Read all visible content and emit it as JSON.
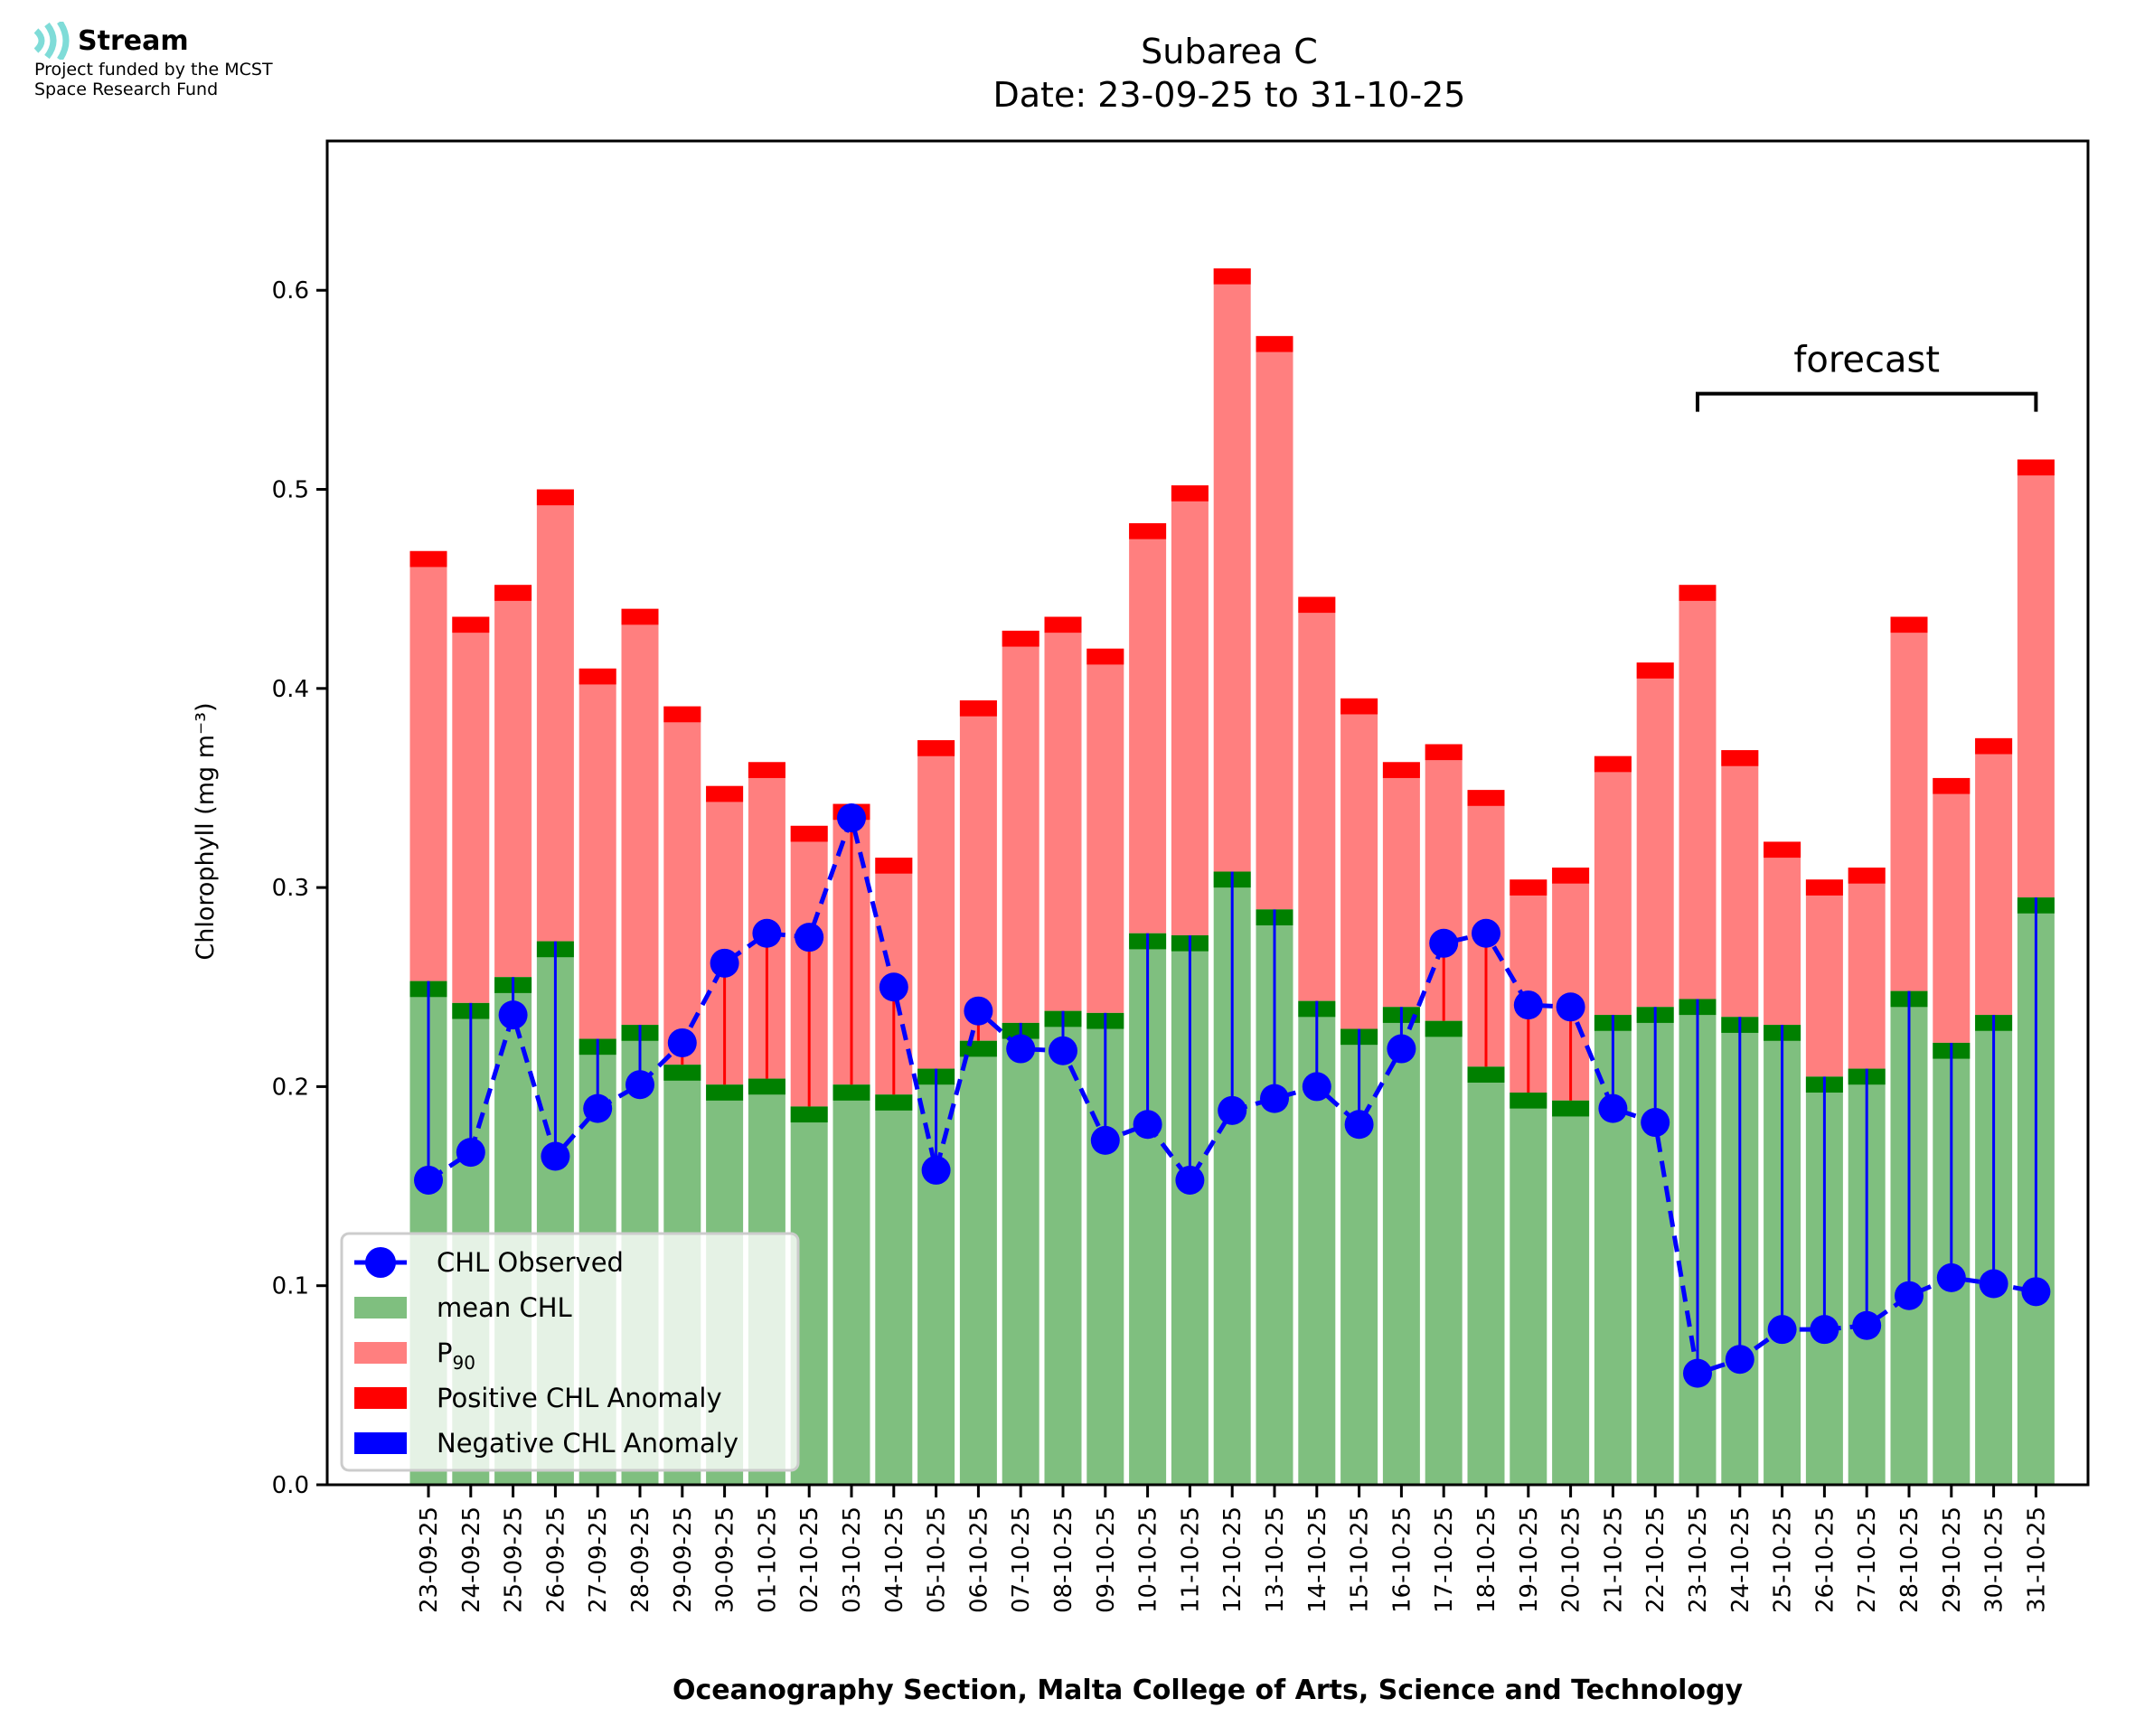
{
  "logo": {
    "name": "Stream",
    "line1": "Project funded by the MCST",
    "line2": "Space Research Fund",
    "icon": "stream-waves-icon",
    "color": "#7fdcd8"
  },
  "chart_data": {
    "type": "bar",
    "title": "Subarea C",
    "subtitle": "Date: 23-09-25 to 31-10-25",
    "xlabel": "Oceanography Section, Malta College of Arts, Science and Technology",
    "ylabel": "Chlorophyll (mg m⁻³)",
    "ylim": [
      0,
      0.675
    ],
    "yticks": [
      0.0,
      0.1,
      0.2,
      0.3,
      0.4,
      0.5,
      0.6
    ],
    "ytick_labels": [
      "0.0",
      "0.1",
      "0.2",
      "0.3",
      "0.4",
      "0.5",
      "0.6"
    ],
    "grid": false,
    "legend_position": "lower-left",
    "annotation": {
      "text": "forecast",
      "from": "23-10-25",
      "to": "31-10-25"
    },
    "categories": [
      "23-09-25",
      "24-09-25",
      "25-09-25",
      "26-09-25",
      "27-09-25",
      "28-09-25",
      "29-09-25",
      "30-09-25",
      "01-10-25",
      "02-10-25",
      "03-10-25",
      "04-10-25",
      "05-10-25",
      "06-10-25",
      "07-10-25",
      "08-10-25",
      "09-10-25",
      "10-10-25",
      "11-10-25",
      "12-10-25",
      "13-10-25",
      "14-10-25",
      "15-10-25",
      "16-10-25",
      "17-10-25",
      "18-10-25",
      "19-10-25",
      "20-10-25",
      "21-10-25",
      "22-10-25",
      "23-10-25",
      "24-10-25",
      "25-10-25",
      "26-10-25",
      "27-10-25",
      "28-10-25",
      "29-10-25",
      "30-10-25",
      "31-10-25"
    ],
    "series": [
      {
        "name": "mean CHL",
        "color": "#7fbf7f",
        "band_color": "#008000",
        "values": [
          0.253,
          0.242,
          0.255,
          0.273,
          0.224,
          0.231,
          0.211,
          0.201,
          0.204,
          0.19,
          0.201,
          0.196,
          0.209,
          0.223,
          0.232,
          0.238,
          0.237,
          0.277,
          0.276,
          0.308,
          0.289,
          0.243,
          0.229,
          0.24,
          0.233,
          0.21,
          0.197,
          0.193,
          0.236,
          0.24,
          0.244,
          0.235,
          0.231,
          0.205,
          0.209,
          0.248,
          0.222,
          0.236,
          0.295
        ]
      },
      {
        "name": "P90",
        "color": "#ff7f7f",
        "band_color": "#ff0000",
        "values": [
          0.469,
          0.436,
          0.452,
          0.5,
          0.41,
          0.44,
          0.391,
          0.351,
          0.363,
          0.331,
          0.342,
          0.315,
          0.374,
          0.394,
          0.429,
          0.436,
          0.42,
          0.483,
          0.502,
          0.611,
          0.577,
          0.446,
          0.395,
          0.363,
          0.372,
          0.349,
          0.304,
          0.31,
          0.366,
          0.413,
          0.452,
          0.369,
          0.323,
          0.304,
          0.31,
          0.436,
          0.355,
          0.375,
          0.515
        ]
      },
      {
        "name": "CHL Observed",
        "color": "#0000ff",
        "values": [
          0.153,
          0.167,
          0.236,
          0.165,
          0.189,
          0.201,
          0.222,
          0.262,
          0.277,
          0.275,
          0.335,
          0.25,
          0.158,
          0.238,
          0.219,
          0.218,
          0.173,
          0.181,
          0.153,
          0.188,
          0.194,
          0.2,
          0.181,
          0.219,
          0.272,
          0.277,
          0.241,
          0.24,
          0.189,
          0.182,
          0.056,
          0.063,
          0.078,
          0.078,
          0.08,
          0.095,
          0.104,
          0.101,
          0.097
        ]
      }
    ],
    "legend": [
      {
        "label": "CHL Observed",
        "kind": "line-marker",
        "color": "#0000ff"
      },
      {
        "label": "mean CHL",
        "kind": "patch",
        "color": "#7fbf7f"
      },
      {
        "label": "P",
        "sub": "90",
        "kind": "patch",
        "color": "#ff7f7f"
      },
      {
        "label": "Positive CHL Anomaly",
        "kind": "patch",
        "color": "#ff0000"
      },
      {
        "label": "Negative CHL Anomaly",
        "kind": "patch",
        "color": "#0000ff"
      }
    ]
  }
}
